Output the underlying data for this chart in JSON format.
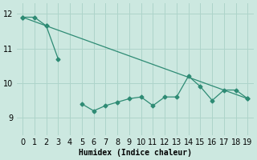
{
  "x": [
    0,
    1,
    2,
    3,
    4,
    5,
    6,
    7,
    8,
    9,
    10,
    11,
    12,
    13,
    14,
    15,
    16,
    17,
    18,
    19
  ],
  "line1": [
    11.9,
    11.9,
    11.65,
    10.7,
    null,
    9.4,
    9.2,
    9.35,
    9.45,
    9.55,
    9.6,
    9.35,
    9.6,
    9.6,
    10.2,
    9.9,
    9.5,
    9.8,
    9.8,
    9.55
  ],
  "line2_x": [
    0,
    2,
    19
  ],
  "line2_y": [
    11.9,
    11.65,
    9.55
  ],
  "line_color": "#2e8b74",
  "bg_color": "#cce8e0",
  "grid_color": "#aed4ca",
  "xlabel": "Humidex (Indice chaleur)",
  "xlim": [
    -0.5,
    19.5
  ],
  "ylim": [
    8.5,
    12.3
  ],
  "yticks": [
    9,
    10,
    11,
    12
  ],
  "xticks": [
    0,
    1,
    2,
    3,
    4,
    5,
    6,
    7,
    8,
    9,
    10,
    11,
    12,
    13,
    14,
    15,
    16,
    17,
    18,
    19
  ],
  "font_size": 7.0,
  "marker_size": 2.5,
  "line_width": 0.9
}
